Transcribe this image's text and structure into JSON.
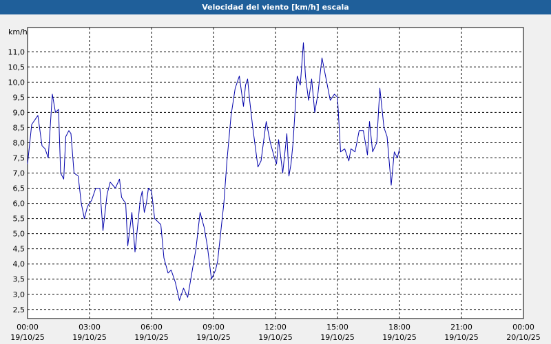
{
  "window": {
    "title": "Velocidad del viento [km/h] escala"
  },
  "chart_data": {
    "type": "line",
    "title": "Velocidad del viento [km/h] escala",
    "ylabel": "km/h",
    "xlabel": "",
    "ylim": [
      2.2,
      11.8
    ],
    "xlim_hours": [
      0,
      24
    ],
    "grid": true,
    "grid_style": "dashed",
    "y_ticks": [
      "2,5",
      "3,0",
      "3,5",
      "4,0",
      "4,5",
      "5,0",
      "5,5",
      "6,0",
      "6,5",
      "7,0",
      "7,5",
      "8,0",
      "8,5",
      "9,0",
      "9,5",
      "10,0",
      "10,5",
      "11,0"
    ],
    "y_tick_values": [
      2.5,
      3.0,
      3.5,
      4.0,
      4.5,
      5.0,
      5.5,
      6.0,
      6.5,
      7.0,
      7.5,
      8.0,
      8.5,
      9.0,
      9.5,
      10.0,
      10.5,
      11.0
    ],
    "x_ticks": [
      {
        "time": "00:00",
        "date": "19/10/25"
      },
      {
        "time": "03:00",
        "date": "19/10/25"
      },
      {
        "time": "06:00",
        "date": "19/10/25"
      },
      {
        "time": "09:00",
        "date": "19/10/25"
      },
      {
        "time": "12:00",
        "date": "19/10/25"
      },
      {
        "time": "15:00",
        "date": "19/10/25"
      },
      {
        "time": "18:00",
        "date": "19/10/25"
      },
      {
        "time": "21:00",
        "date": "19/10/25"
      },
      {
        "time": "00:00",
        "date": "20/10/25"
      }
    ],
    "series": [
      {
        "color": "#0000aa",
        "x_hours": [
          0.0,
          0.2,
          0.3,
          0.5,
          0.7,
          0.85,
          1.0,
          1.2,
          1.35,
          1.5,
          1.6,
          1.75,
          1.85,
          2.0,
          2.1,
          2.25,
          2.45,
          2.6,
          2.75,
          2.9,
          3.1,
          3.3,
          3.5,
          3.65,
          3.85,
          4.0,
          4.25,
          4.45,
          4.55,
          4.75,
          4.85,
          5.05,
          5.2,
          5.35,
          5.45,
          5.55,
          5.65,
          5.75,
          5.85,
          6.0,
          6.15,
          6.3,
          6.45,
          6.6,
          6.8,
          6.95,
          7.15,
          7.35,
          7.55,
          7.75,
          7.95,
          8.15,
          8.35,
          8.55,
          8.7,
          8.9,
          9.1,
          9.2,
          9.5,
          9.65,
          9.85,
          10.05,
          10.25,
          10.45,
          10.55,
          10.65,
          10.75,
          10.9,
          11.15,
          11.3,
          11.55,
          11.75,
          11.95,
          12.05,
          12.15,
          12.35,
          12.55,
          12.65,
          12.75,
          12.85,
          13.05,
          13.2,
          13.35,
          13.45,
          13.6,
          13.75,
          13.9,
          14.05,
          14.25,
          14.45,
          14.65,
          14.85,
          15.0,
          15.15,
          15.35,
          15.55,
          15.65,
          15.85,
          16.05,
          16.25,
          16.45,
          16.55,
          16.7,
          16.9,
          17.05,
          17.25,
          17.4,
          17.6,
          17.75,
          17.9,
          18.0
        ],
        "values": [
          7.3,
          8.6,
          8.7,
          8.9,
          7.9,
          7.8,
          7.5,
          9.6,
          9.0,
          9.1,
          7.0,
          6.8,
          8.2,
          8.4,
          8.3,
          7.0,
          6.9,
          6.0,
          5.5,
          5.9,
          6.1,
          6.5,
          6.5,
          5.1,
          6.3,
          6.7,
          6.5,
          6.8,
          6.2,
          6.0,
          4.6,
          5.7,
          4.4,
          5.4,
          6.1,
          6.4,
          5.7,
          6.0,
          6.5,
          6.4,
          5.5,
          5.4,
          5.3,
          4.2,
          3.7,
          3.8,
          3.4,
          2.8,
          3.2,
          2.9,
          3.7,
          4.5,
          5.7,
          5.2,
          4.6,
          3.5,
          3.8,
          4.1,
          6.0,
          7.4,
          8.9,
          9.8,
          10.2,
          9.2,
          9.9,
          10.1,
          9.4,
          8.5,
          7.2,
          7.4,
          8.7,
          8.0,
          7.5,
          7.3,
          8.1,
          7.0,
          8.3,
          6.9,
          7.3,
          8.0,
          10.2,
          9.9,
          11.3,
          10.2,
          9.4,
          10.1,
          9.0,
          9.6,
          10.8,
          10.1,
          9.4,
          9.6,
          9.5,
          7.7,
          7.8,
          7.4,
          7.8,
          7.7,
          8.4,
          8.4,
          7.6,
          8.7,
          7.7,
          8.0,
          9.8,
          8.5,
          8.2,
          6.6,
          7.7,
          7.5,
          7.8
        ]
      }
    ]
  }
}
